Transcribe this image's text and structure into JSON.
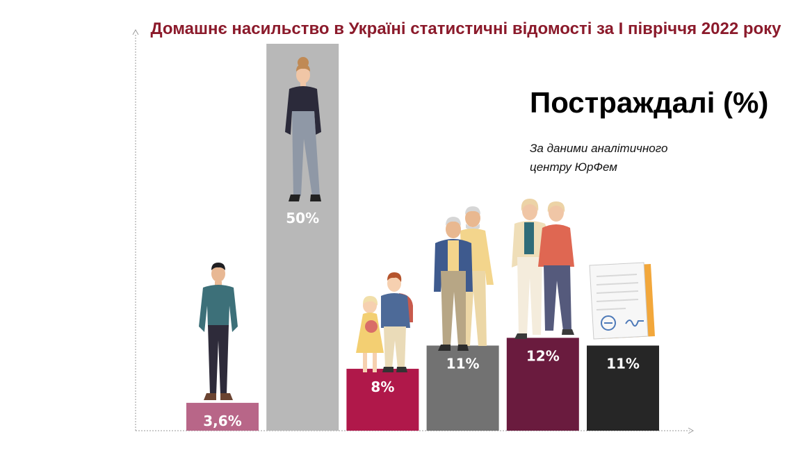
{
  "header": {
    "title": "Домашнє насильство в Україні статистичні відомості за І півріччя 2022 року"
  },
  "chart_data": {
    "type": "bar",
    "title": "Постраждалі (%)",
    "source_note_lines": [
      "За даними аналітичного",
      "центру ЮрФем"
    ],
    "categories": [
      "",
      "",
      "",
      "",
      "",
      ""
    ],
    "values": [
      3.6,
      50,
      8,
      11,
      12,
      11
    ],
    "data_labels": [
      "3,6%",
      "50%",
      "8%",
      "11%",
      "12%",
      "11%"
    ],
    "bar_colors": [
      "#b86688",
      "#b8b8b8",
      "#b0184a",
      "#727272",
      "#6a1b3e",
      "#262626"
    ],
    "icons": [
      "man-icon",
      "woman-icon",
      "children-icon",
      "elderly-men-icon",
      "elderly-women-icon",
      "document-icon"
    ],
    "ylim": [
      0,
      50
    ],
    "grid": false,
    "legend": "none",
    "xlabel": "",
    "ylabel": ""
  }
}
